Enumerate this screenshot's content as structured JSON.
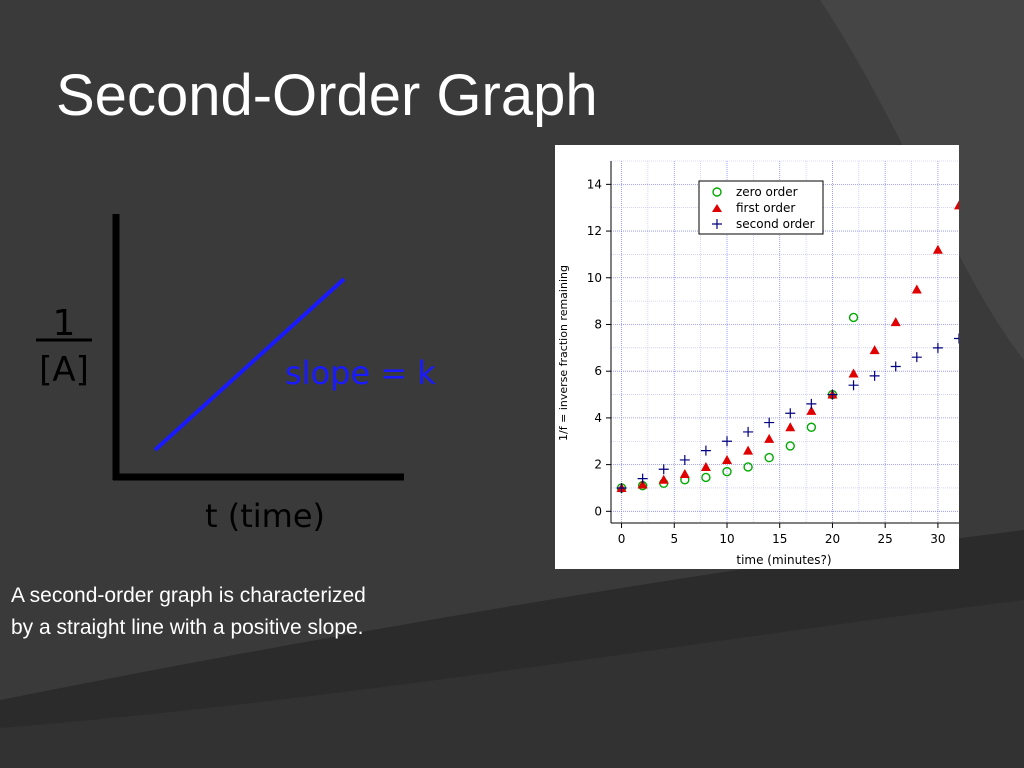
{
  "slide": {
    "title": "Second-Order Graph",
    "caption_lines": [
      "A second-order graph is characterized",
      "by a straight line with a positive slope."
    ],
    "colors": {
      "background": "#3a3a3a",
      "title_text": "#ffffff",
      "sketch_axes": "#000000",
      "sketch_line": "#1a1aff"
    }
  },
  "sketch": {
    "y_label_numerator": "1",
    "y_label_denominator": "[A]",
    "x_label": "t (time)",
    "slope_label": "slope = k"
  },
  "chart_data": {
    "type": "scatter",
    "xlabel": "time (minutes?)",
    "ylabel": "1/f = inverse fraction remaining",
    "xlim": [
      -1,
      32
    ],
    "ylim": [
      -0.5,
      15
    ],
    "x_ticks": [
      0,
      5,
      10,
      15,
      20,
      25,
      30
    ],
    "y_ticks": [
      0,
      2,
      4,
      6,
      8,
      10,
      12,
      14
    ],
    "grid": true,
    "legend_position": "top-center",
    "series": [
      {
        "name": "zero order",
        "marker": "circle-open",
        "color": "#00aa00",
        "x": [
          0,
          2,
          4,
          6,
          8,
          10,
          12,
          14,
          16,
          18,
          20,
          22
        ],
        "y": [
          1.0,
          1.1,
          1.2,
          1.35,
          1.45,
          1.7,
          1.9,
          2.3,
          2.8,
          3.6,
          5.0,
          8.3
        ]
      },
      {
        "name": "first order",
        "marker": "triangle-filled",
        "color": "#e00000",
        "x": [
          0,
          2,
          4,
          6,
          8,
          10,
          12,
          14,
          16,
          18,
          20,
          22,
          24,
          26,
          28,
          30,
          32
        ],
        "y": [
          1.0,
          1.15,
          1.35,
          1.6,
          1.9,
          2.2,
          2.6,
          3.1,
          3.6,
          4.3,
          5.0,
          5.9,
          6.9,
          8.1,
          9.5,
          11.2,
          13.1
        ]
      },
      {
        "name": "second order",
        "marker": "plus",
        "color": "#000080",
        "x": [
          0,
          2,
          4,
          6,
          8,
          10,
          12,
          14,
          16,
          18,
          20,
          22,
          24,
          26,
          28,
          30,
          32
        ],
        "y": [
          1.0,
          1.4,
          1.8,
          2.2,
          2.6,
          3.0,
          3.4,
          3.8,
          4.2,
          4.6,
          5.0,
          5.4,
          5.8,
          6.2,
          6.6,
          7.0,
          7.4
        ]
      }
    ]
  }
}
